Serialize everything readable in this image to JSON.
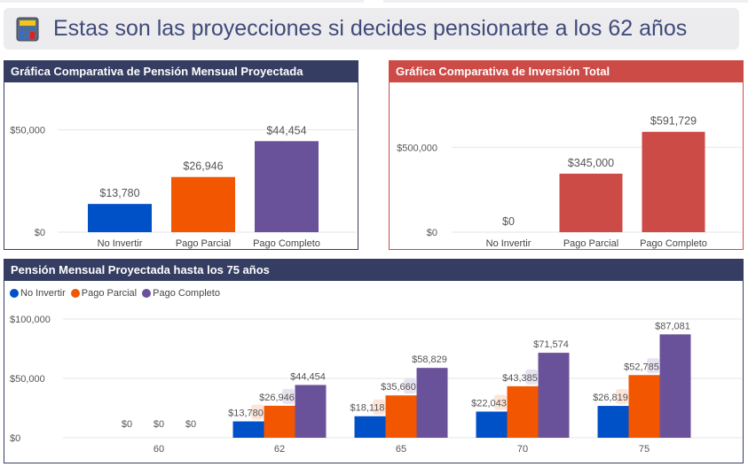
{
  "banner": {
    "icon": "calculator-icon",
    "title": "Estas son las proyecciones si decides pensionarte a los 62 años"
  },
  "colors": {
    "no_invertir": "#0050c8",
    "pago_parcial": "#f25600",
    "pago_completo": "#6a529b",
    "inversion": "#cd4b46",
    "header_navy": "#353e62",
    "header_red": "#cd4b46"
  },
  "chart_data": [
    {
      "type": "bar",
      "title": "Gráfica Comparativa de Pensión Mensual Proyectada",
      "categories": [
        "No Invertir",
        "Pago Parcial",
        "Pago Completo"
      ],
      "values": [
        13780,
        26946,
        44454
      ],
      "value_labels": [
        "$13,780",
        "$26,946",
        "$44,454"
      ],
      "yticks": [
        0,
        50000
      ],
      "ytick_labels": [
        "$0",
        "$50,000"
      ],
      "ylim": [
        0,
        58000
      ],
      "xlabel": "",
      "ylabel": "",
      "grid": true
    },
    {
      "type": "bar",
      "title": "Gráfica Comparativa de Inversión Total",
      "categories": [
        "No Invertir",
        "Pago Parcial",
        "Pago Completo"
      ],
      "values": [
        0,
        345000,
        591729
      ],
      "value_labels": [
        "$0",
        "$345,000",
        "$591,729"
      ],
      "yticks": [
        0,
        500000
      ],
      "ytick_labels": [
        "$0",
        "$500,000"
      ],
      "ylim": [
        0,
        700000
      ],
      "xlabel": "",
      "ylabel": "",
      "grid": true
    },
    {
      "type": "bar",
      "title": "Pensión Mensual Proyectada hasta los 75 años",
      "categories": [
        "60",
        "62",
        "65",
        "70",
        "75"
      ],
      "legend_position": "top-left",
      "series": [
        {
          "name": "No Invertir",
          "values": [
            0,
            13780,
            18118,
            22043,
            26819
          ],
          "labels": [
            "$0",
            "$13,780",
            "$18,118",
            "$22,043",
            "$26,819"
          ]
        },
        {
          "name": "Pago Parcial",
          "values": [
            0,
            26946,
            35660,
            43385,
            52785
          ],
          "labels": [
            "$0",
            "$26,946",
            "$35,660",
            "$43,385",
            "$52,785"
          ]
        },
        {
          "name": "Pago Completo",
          "values": [
            0,
            44454,
            58829,
            71574,
            87081
          ],
          "labels": [
            "$0",
            "$44,454",
            "$58,829",
            "$71,574",
            "$87,081"
          ]
        }
      ],
      "yticks": [
        0,
        50000,
        100000
      ],
      "ytick_labels": [
        "$0",
        "$50,000",
        "$100,000"
      ],
      "ylim": [
        0,
        100000
      ],
      "xlabel": "",
      "ylabel": "",
      "grid": true
    }
  ]
}
